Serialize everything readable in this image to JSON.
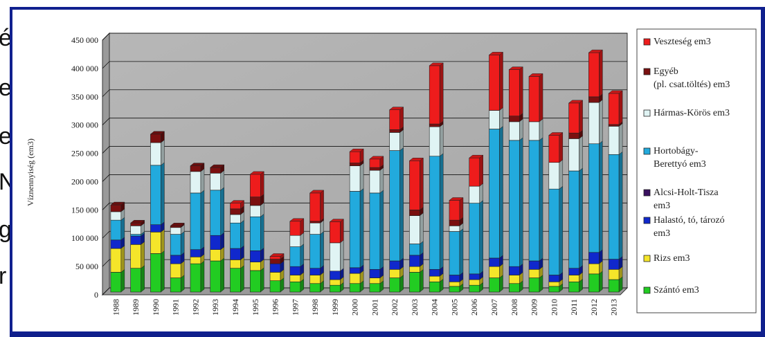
{
  "chart_data": {
    "type": "bar",
    "stacked": true,
    "title": "",
    "xlabel": "",
    "ylabel": "Víznennyiség (em3)",
    "ylim": [
      0,
      450000
    ],
    "yticks": [
      "0",
      "50 000",
      "100 000",
      "150 000",
      "200 000",
      "250 000",
      "300 000",
      "350 000",
      "400 000",
      "450 000"
    ],
    "grid": true,
    "legend_position": "right",
    "categories": [
      "1988",
      "1989",
      "1990",
      "1991",
      "1992",
      "1993",
      "1994",
      "1995",
      "1996",
      "1997",
      "1998",
      "1999",
      "2000",
      "2001",
      "2002",
      "2003",
      "2004",
      "2005",
      "2006",
      "2007",
      "2008",
      "2009",
      "2010",
      "2011",
      "2012",
      "2013"
    ],
    "series": [
      {
        "name": "Szántó em3",
        "color": "#22cc22",
        "values": [
          35000,
          42000,
          68000,
          25000,
          50000,
          55000,
          42000,
          38000,
          20000,
          18000,
          15000,
          12000,
          15000,
          15000,
          25000,
          35000,
          18000,
          10000,
          12000,
          25000,
          15000,
          25000,
          10000,
          18000,
          32000,
          22000
        ]
      },
      {
        "name": "Rizs em3",
        "color": "#f5e52a",
        "values": [
          42000,
          42000,
          38000,
          25000,
          12000,
          20000,
          15000,
          15000,
          15000,
          12000,
          15000,
          10000,
          18000,
          10000,
          15000,
          10000,
          10000,
          8000,
          10000,
          20000,
          15000,
          15000,
          8000,
          12000,
          18000,
          18000
        ]
      },
      {
        "name": "Halastó, tó, tározó em3",
        "color": "#1028cc",
        "values": [
          15000,
          15000,
          13000,
          15000,
          13000,
          25000,
          20000,
          20000,
          15000,
          15000,
          12000,
          15000,
          10000,
          15000,
          15000,
          20000,
          12000,
          12000,
          10000,
          15000,
          15000,
          15000,
          12000,
          12000,
          20000,
          18000
        ]
      },
      {
        "name": "Alcsi-Holt-Tisza em3",
        "color": "#3a1060",
        "values": [
          0,
          0,
          0,
          0,
          0,
          0,
          0,
          0,
          0,
          0,
          0,
          0,
          0,
          0,
          0,
          0,
          0,
          0,
          0,
          0,
          0,
          0,
          0,
          0,
          0,
          0
        ]
      },
      {
        "name": "Hortobágy-Berettyó em3",
        "color": "#22aadd",
        "values": [
          35000,
          3000,
          105000,
          37000,
          100000,
          80000,
          45000,
          60000,
          0,
          35000,
          60000,
          0,
          135000,
          135000,
          195000,
          20000,
          200000,
          77000,
          125000,
          228000,
          223000,
          213000,
          152000,
          172000,
          192000,
          185000
        ]
      },
      {
        "name": "Hármas-Körös em3",
        "color": "#e0f4f4",
        "values": [
          15000,
          15000,
          40000,
          12000,
          38000,
          30000,
          15000,
          20000,
          0,
          20000,
          20000,
          50000,
          45000,
          40000,
          32000,
          50000,
          52000,
          10000,
          30000,
          33000,
          33000,
          33000,
          47000,
          57000,
          73000,
          50000
        ]
      },
      {
        "name": "Egyéb (pl. csat.töltés) em3",
        "color": "#7a1010",
        "values": [
          12000,
          5000,
          15000,
          3000,
          10000,
          10000,
          10000,
          15000,
          8000,
          0,
          3000,
          0,
          5000,
          5000,
          5000,
          10000,
          5000,
          10000,
          0,
          0,
          10000,
          0,
          0,
          10000,
          10000,
          3000
        ]
      },
      {
        "name": "Veszteség em3",
        "color": "#ee1c1c",
        "values": [
          0,
          0,
          0,
          0,
          0,
          0,
          10000,
          40000,
          5000,
          25000,
          50000,
          37000,
          20000,
          15000,
          35000,
          87000,
          103000,
          35000,
          50000,
          98000,
          82000,
          80000,
          48000,
          53000,
          78000,
          55000
        ]
      }
    ]
  },
  "legend_labels": [
    {
      "lines": [
        "Veszteség em3"
      ]
    },
    {
      "lines": [
        "Egyéb",
        "(pl. csat.töltés) em3"
      ]
    },
    {
      "lines": [
        "Hármas-Körös em3"
      ]
    },
    {
      "lines": [
        "Hortobágy-",
        "Berettyó em3"
      ]
    },
    {
      "lines": [
        "Alcsi-Holt-Tisza",
        "em3"
      ]
    },
    {
      "lines": [
        "Halastó, tó, tározó",
        "em3"
      ]
    },
    {
      "lines": [
        "Rizs em3"
      ]
    },
    {
      "lines": [
        "Szántó em3"
      ]
    }
  ],
  "slide_fragments": [
    "é",
    "e",
    "e",
    "N",
    "g",
    "r"
  ]
}
